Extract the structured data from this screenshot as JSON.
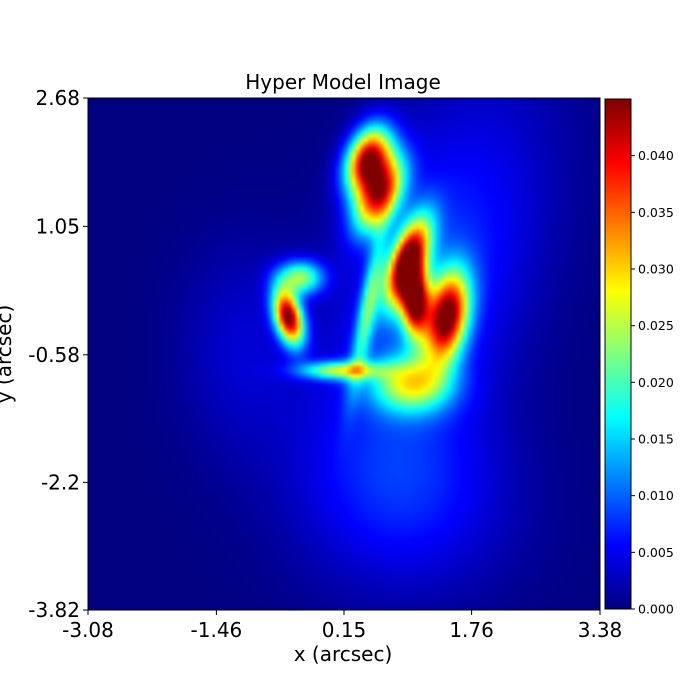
{
  "chart_data": {
    "type": "heatmap",
    "title": "Hyper Model Image",
    "xlabel": "x (arcsec)",
    "ylabel": "y (arcsec)",
    "xlim": [
      -3.08,
      3.38
    ],
    "ylim": [
      -3.82,
      2.68
    ],
    "x_ticks": [
      "-3.08",
      "-1.46",
      "0.15",
      "1.76",
      "3.38"
    ],
    "y_ticks": [
      "2.68",
      "1.05",
      "-0.58",
      "-2.2",
      "-3.82"
    ],
    "colorbar": {
      "colormap": "jet",
      "range": [
        0.0,
        0.045
      ],
      "ticks": [
        "0.000",
        "0.005",
        "0.010",
        "0.015",
        "0.020",
        "0.025",
        "0.030",
        "0.035",
        "0.040"
      ]
    },
    "background_color": "#000080",
    "image_features": [
      {
        "feature": "outer arc envelope",
        "cx": 1.3,
        "cy": 0.35,
        "sx": 0.8,
        "sy": 1.75,
        "rot": -18,
        "amp": 0.008
      },
      {
        "feature": "southern tail",
        "cx": 0.95,
        "cy": -2.35,
        "sx": 0.95,
        "sy": 0.85,
        "rot": -20,
        "amp": 0.006
      },
      {
        "feature": "western faint halo",
        "cx": -1.15,
        "cy": -0.5,
        "sx": 0.55,
        "sy": 0.95,
        "rot": 0,
        "amp": 0.0035
      },
      {
        "feature": "upper arc knot",
        "cx": 0.45,
        "cy": 1.9,
        "sx": 0.18,
        "sy": 0.3,
        "rot": -20,
        "amp": 0.042
      },
      {
        "feature": "upper arc ridge",
        "cx": 0.6,
        "cy": 1.45,
        "sx": 0.18,
        "sy": 0.35,
        "rot": -25,
        "amp": 0.036
      },
      {
        "feature": "central arc peak",
        "cx": 0.95,
        "cy": 0.6,
        "sx": 0.15,
        "sy": 0.4,
        "rot": -20,
        "amp": 0.044
      },
      {
        "feature": "central arc lower",
        "cx": 1.05,
        "cy": 0.1,
        "sx": 0.12,
        "sy": 0.3,
        "rot": 0,
        "amp": 0.04
      },
      {
        "feature": "eastern knot",
        "cx": 1.45,
        "cy": -0.1,
        "sx": 0.18,
        "sy": 0.4,
        "rot": -10,
        "amp": 0.042
      },
      {
        "feature": "lower arc blob",
        "cx": 1.0,
        "cy": -0.95,
        "sx": 0.35,
        "sy": 0.25,
        "rot": 0,
        "amp": 0.022
      },
      {
        "feature": "inner ring knot",
        "cx": -0.55,
        "cy": -0.1,
        "sx": 0.12,
        "sy": 0.25,
        "rot": 15,
        "amp": 0.044
      },
      {
        "feature": "inner ring upper",
        "cx": -0.4,
        "cy": 0.4,
        "sx": 0.2,
        "sy": 0.15,
        "rot": 0,
        "amp": 0.022
      },
      {
        "feature": "inner ring bottom",
        "cx": 0.1,
        "cy": -0.78,
        "sx": 0.35,
        "sy": 0.08,
        "rot": 0,
        "amp": 0.022
      },
      {
        "feature": "inner ring right arc",
        "cx": 0.45,
        "cy": 0.0,
        "sx": 0.08,
        "sy": 0.7,
        "rot": -10,
        "amp": 0.016
      }
    ]
  }
}
